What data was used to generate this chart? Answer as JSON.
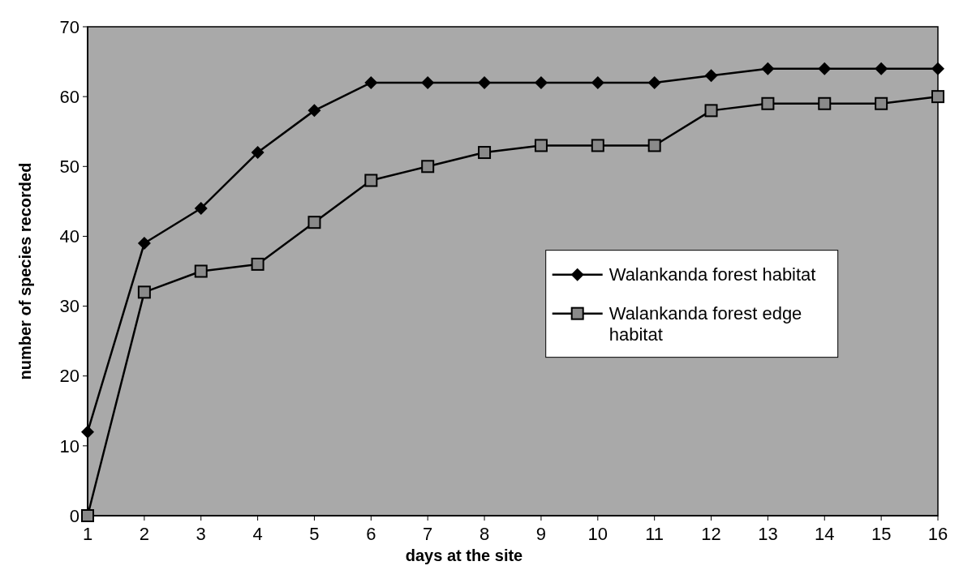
{
  "chart_data": {
    "type": "line",
    "xlabel": "days at the site",
    "ylabel": "number of species recorded",
    "x": [
      1,
      2,
      3,
      4,
      5,
      6,
      7,
      8,
      9,
      10,
      11,
      12,
      13,
      14,
      15,
      16
    ],
    "xlim": [
      1,
      16
    ],
    "xticks": [
      1,
      2,
      3,
      4,
      5,
      6,
      7,
      8,
      9,
      10,
      11,
      12,
      13,
      14,
      15,
      16
    ],
    "ylim": [
      0,
      70
    ],
    "yticks": [
      0,
      10,
      20,
      30,
      40,
      50,
      60,
      70
    ],
    "grid": false,
    "legend": "right",
    "line_style": "solid",
    "series": [
      {
        "name": "Walankanda forest habitat",
        "color": "#000000",
        "marker": "diamond",
        "values": [
          12,
          39,
          44,
          52,
          58,
          62,
          62,
          62,
          62,
          62,
          62,
          63,
          64,
          64,
          64,
          64
        ]
      },
      {
        "name": "Walankanda forest edge habitat",
        "color": "#000000",
        "marker": "square",
        "values": [
          0,
          32,
          35,
          36,
          42,
          48,
          50,
          52,
          53,
          53,
          53,
          58,
          59,
          59,
          59,
          60
        ]
      }
    ]
  }
}
